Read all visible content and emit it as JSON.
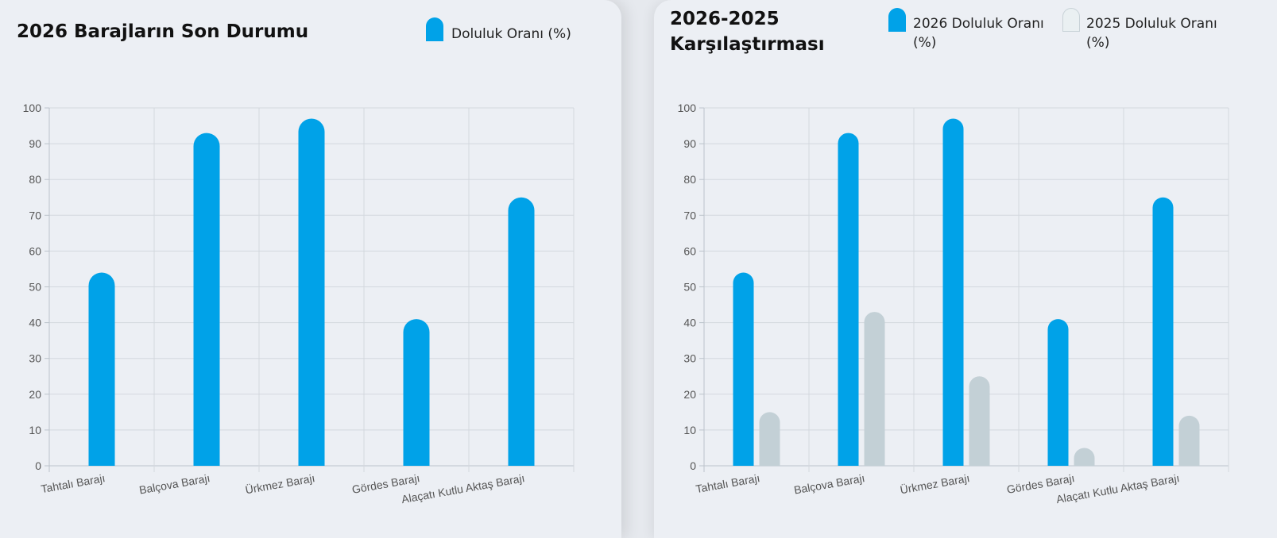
{
  "chart_data": [
    {
      "type": "bar",
      "title": "2026 Barajların Son Durumu",
      "categories": [
        "Tahtalı Barajı",
        "Balçova Barajı",
        "Ürkmez Barajı",
        "Gördes Barajı",
        "Alaçatı Kutlu Aktaş Barajı"
      ],
      "series": [
        {
          "name": "Doluluk Oranı (%)",
          "color": "#00a2e8",
          "values": [
            54,
            93,
            97,
            41,
            75
          ]
        }
      ],
      "ylim": [
        0,
        100
      ],
      "yticks": [
        0,
        10,
        20,
        30,
        40,
        50,
        60,
        70,
        80,
        90,
        100
      ],
      "grid": true,
      "legend_position": "top-right"
    },
    {
      "type": "bar",
      "title_lines": [
        "2026-2025",
        "Karşılaştırması"
      ],
      "categories": [
        "Tahtalı Barajı",
        "Balçova Barajı",
        "Ürkmez Barajı",
        "Gördes Barajı",
        "Alaçatı Kutlu Aktaş Barajı"
      ],
      "series": [
        {
          "name_lines": [
            "2026 Doluluk Oranı",
            "(%)"
          ],
          "color": "#00a2e8",
          "values": [
            54,
            93,
            97,
            41,
            75
          ]
        },
        {
          "name_lines": [
            "2025 Doluluk Oranı",
            "(%)"
          ],
          "color": "#c3d0d6",
          "values": [
            15,
            43,
            25,
            5,
            14
          ]
        }
      ],
      "ylim": [
        0,
        100
      ],
      "yticks": [
        0,
        10,
        20,
        30,
        40,
        50,
        60,
        70,
        80,
        90,
        100
      ],
      "grid": true,
      "legend_position": "top-right"
    }
  ]
}
